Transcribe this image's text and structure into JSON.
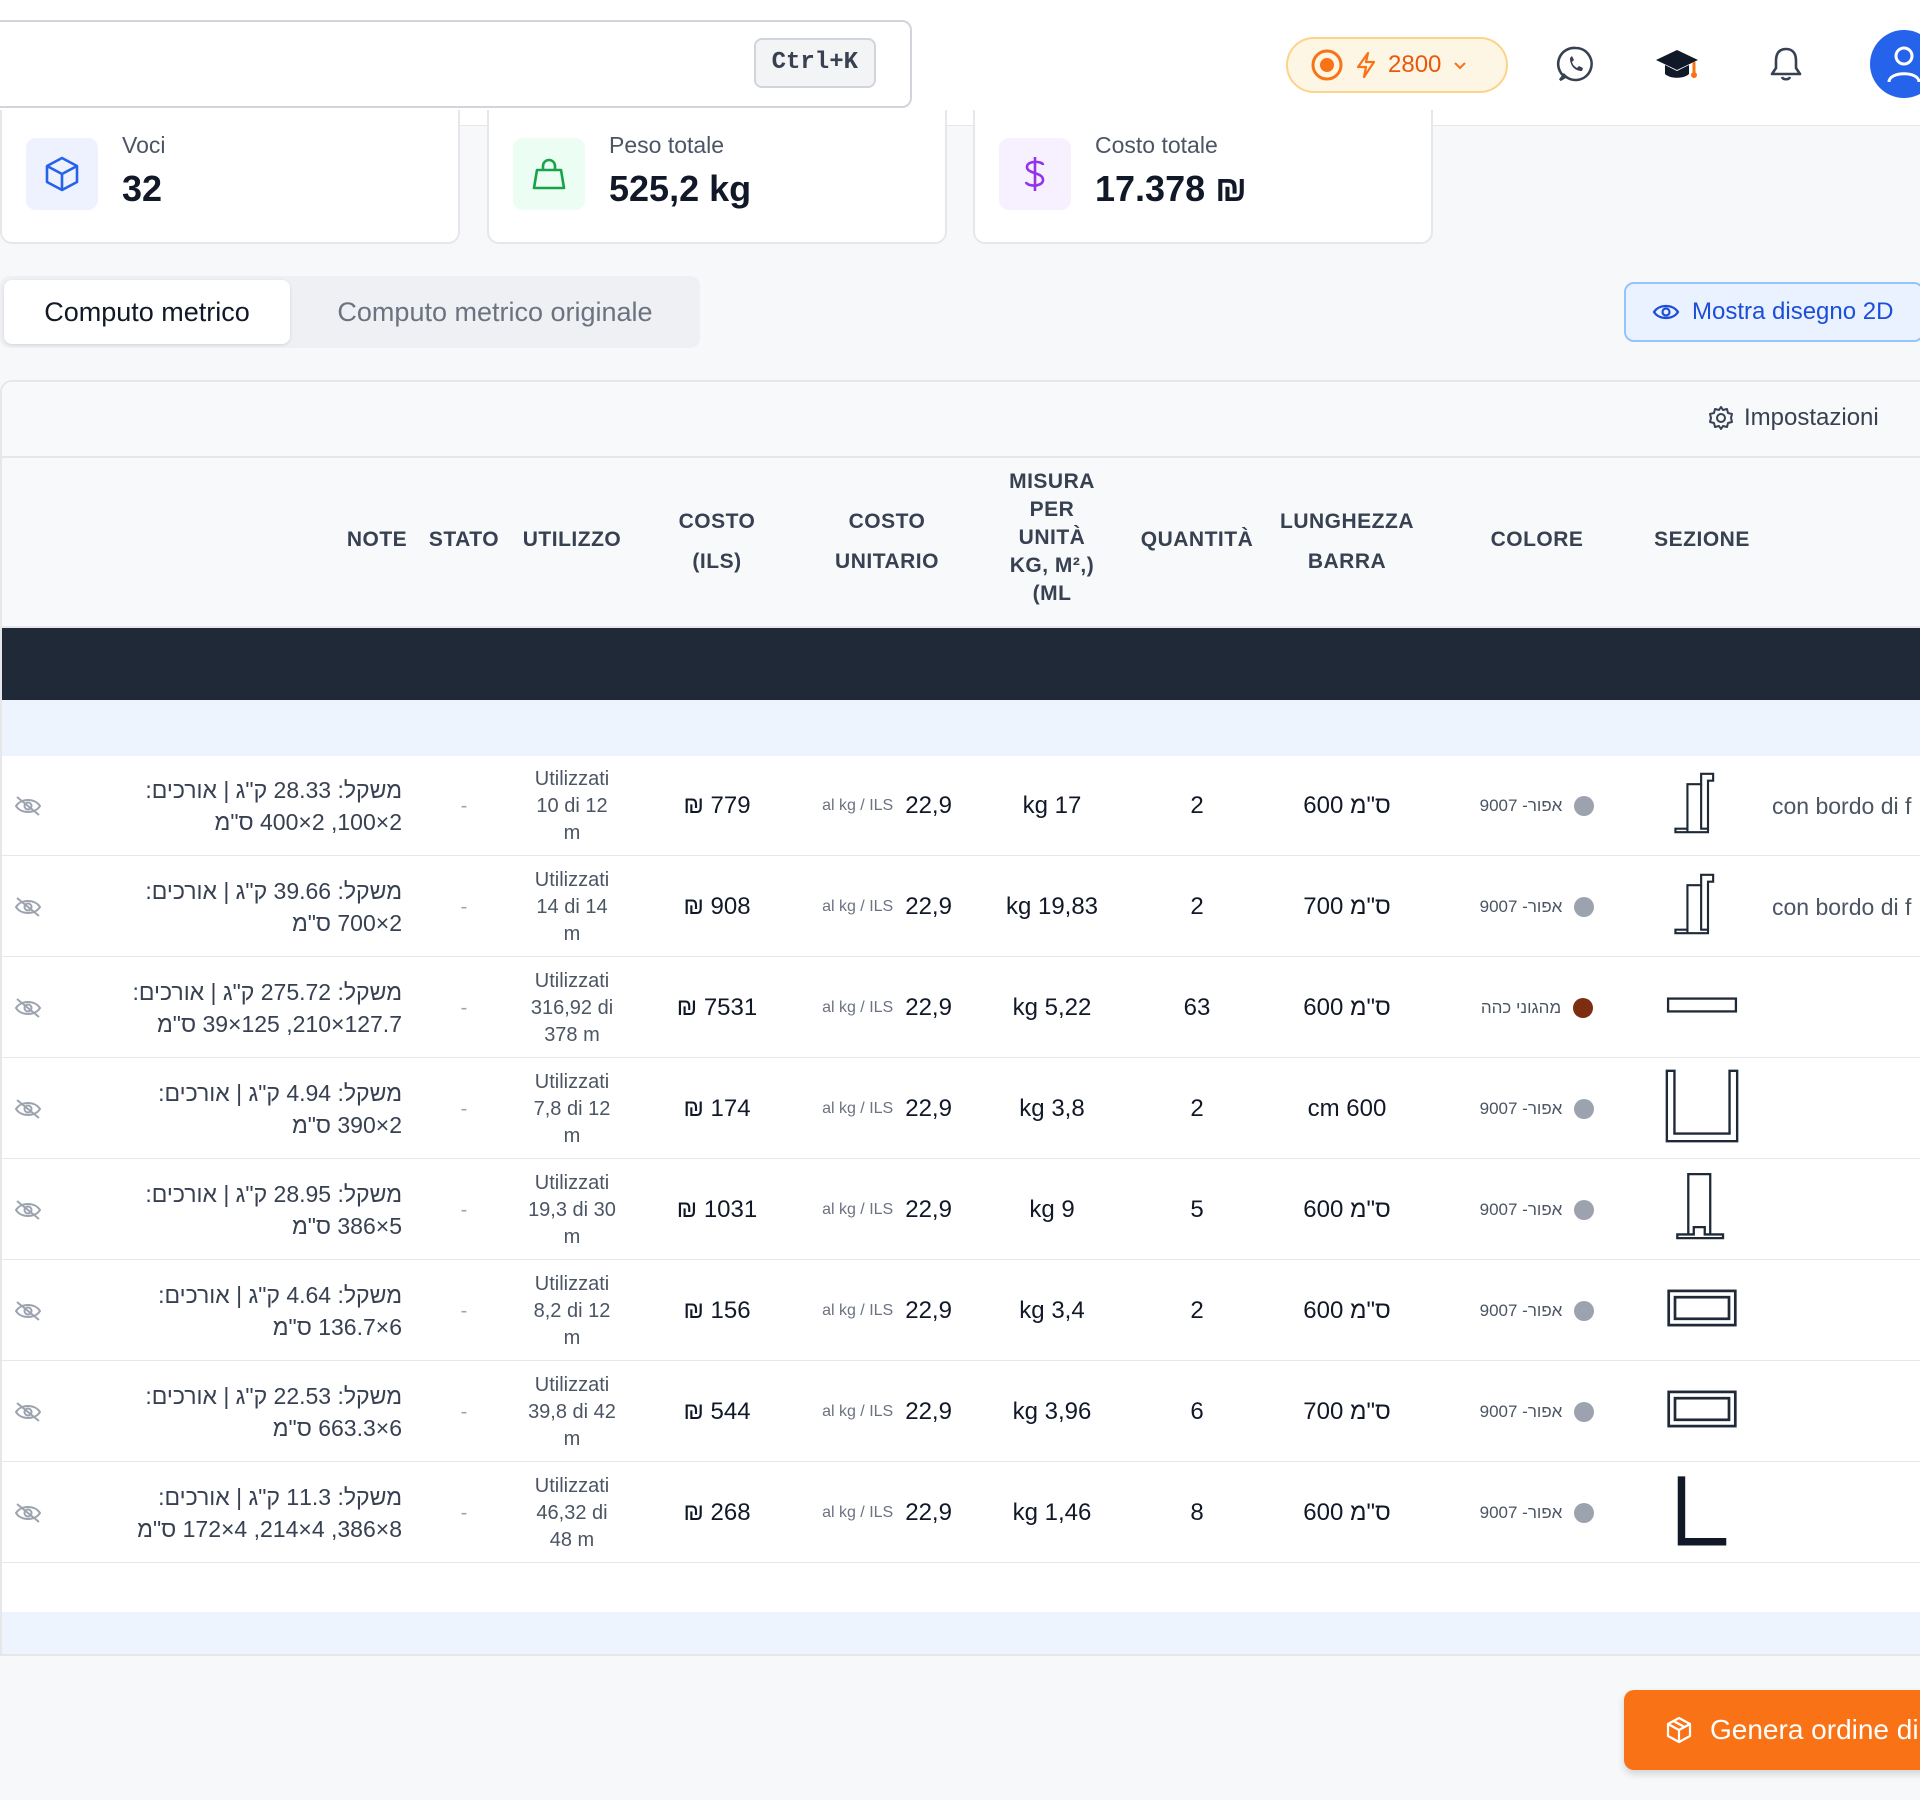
{
  "header": {
    "search_shortcut": "Ctrl+K",
    "credits": "2800"
  },
  "stats": [
    {
      "label": "Voci",
      "value": "32",
      "icon": "cube-icon",
      "color": "#2563eb"
    },
    {
      "label": "Peso totale",
      "value": "525,2 kg",
      "icon": "weight-icon",
      "color": "#16a34a"
    },
    {
      "label": "Costo totale",
      "value": "17.378 ₪",
      "icon": "dollar-icon",
      "color": "#9333ea"
    }
  ],
  "tabs": {
    "active": "Computo metrico",
    "inactive": "Computo metrico originale"
  },
  "show_2d_label": "Mostra disegno 2D",
  "settings_label": "Impostazioni",
  "columns": {
    "note": "NOTE",
    "stato": "STATO",
    "utilizzo": "UTILIZZO",
    "costo_1": "COSTO",
    "costo_2": "(ILS)",
    "unitario_1": "COSTO",
    "unitario_2": "UNITARIO",
    "misura_1": "MISURA",
    "misura_2": "PER",
    "misura_3": "UNITÀ",
    "misura_4": "KG, M²,)",
    "misura_5": "(ML",
    "quantita": "QUANTITÀ",
    "lunghezza_1": "LUNGHEZZA",
    "lunghezza_2": "BARRA",
    "colore": "COLORE",
    "sezione": "SEZIONE"
  },
  "rows": [
    {
      "note_1": "משקל: 28.33 ק\"ג | אורכים:",
      "note_2": "2×100, 2×400 ס\"מ",
      "stato": "-",
      "util_1": "Utilizzati",
      "util_2": "10 di 12",
      "util_3": "m",
      "costo": "₪ 779",
      "unit_small": "al kg / ILS",
      "unit_val": "22,9",
      "misura": "kg 17",
      "quantita": "2",
      "lunghezza": "600 ס\"מ",
      "colore": "אפור- 9007",
      "dot": "#9ca3af",
      "section": "omega",
      "desc": "con bordo di f"
    },
    {
      "note_1": "משקל: 39.66 ק\"ג | אורכים:",
      "note_2": "2×700 ס\"מ",
      "stato": "-",
      "util_1": "Utilizzati",
      "util_2": "14 di 14",
      "util_3": "m",
      "costo": "₪ 908",
      "unit_small": "al kg / ILS",
      "unit_val": "22,9",
      "misura": "kg 19,83",
      "quantita": "2",
      "lunghezza": "700 ס\"מ",
      "colore": "אפור- 9007",
      "dot": "#9ca3af",
      "section": "omega",
      "desc": "con bordo di f"
    },
    {
      "note_1": "משקל: 275.72 ק\"ג | אורכים:",
      "note_2": "127.7×210, 125×39 ס\"מ",
      "stato": "-",
      "util_1": "Utilizzati",
      "util_2": "316,92 di",
      "util_3": "378 m",
      "costo": "₪ 7531",
      "unit_small": "al kg / ILS",
      "unit_val": "22,9",
      "misura": "kg 5,22",
      "quantita": "63",
      "lunghezza": "600 ס\"מ",
      "colore": "מהגוני כהה",
      "dot": "#7c2d12",
      "section": "flat",
      "desc": ""
    },
    {
      "note_1": "משקל: 4.94 ק\"ג | אורכים:",
      "note_2": "2×390 ס\"מ",
      "stato": "-",
      "util_1": "Utilizzati",
      "util_2": "7,8 di 12",
      "util_3": "m",
      "costo": "₪ 174",
      "unit_small": "al kg / ILS",
      "unit_val": "22,9",
      "misura": "kg 3,8",
      "quantita": "2",
      "lunghezza": "cm 600",
      "colore": "אפור- 9007",
      "dot": "#9ca3af",
      "section": "u",
      "desc": ""
    },
    {
      "note_1": "משקל: 28.95 ק\"ג | אורכים:",
      "note_2": "5×386 ס\"מ",
      "stato": "-",
      "util_1": "Utilizzati",
      "util_2": "19,3 di 30",
      "util_3": "m",
      "costo": "₪ 1031",
      "unit_small": "al kg / ILS",
      "unit_val": "22,9",
      "misura": "kg 9",
      "quantita": "5",
      "lunghezza": "600 ס\"מ",
      "colore": "אפור- 9007",
      "dot": "#9ca3af",
      "section": "tall",
      "desc": ""
    },
    {
      "note_1": "משקל: 4.64 ק\"ג | אורכים:",
      "note_2": "6×136.7 ס\"מ",
      "stato": "-",
      "util_1": "Utilizzati",
      "util_2": "8,2 di 12",
      "util_3": "m",
      "costo": "₪ 156",
      "unit_small": "al kg / ILS",
      "unit_val": "22,9",
      "misura": "kg 3,4",
      "quantita": "2",
      "lunghezza": "600 ס\"מ",
      "colore": "אפור- 9007",
      "dot": "#9ca3af",
      "section": "rect",
      "desc": ""
    },
    {
      "note_1": "משקל: 22.53 ק\"ג | אורכים:",
      "note_2": "6×663.3 ס\"מ",
      "stato": "-",
      "util_1": "Utilizzati",
      "util_2": "39,8 di 42",
      "util_3": "m",
      "costo": "₪ 544",
      "unit_small": "al kg / ILS",
      "unit_val": "22,9",
      "misura": "kg 3,96",
      "quantita": "6",
      "lunghezza": "700 ס\"מ",
      "colore": "אפור- 9007",
      "dot": "#9ca3af",
      "section": "rect",
      "desc": ""
    },
    {
      "note_1": "משקל: 11.3 ק\"ג | אורכים:",
      "note_2": "8×386, 4×214, 4×172 ס\"מ",
      "stato": "-",
      "util_1": "Utilizzati",
      "util_2": "46,32 di",
      "util_3": "48 m",
      "costo": "₪ 268",
      "unit_small": "al kg / ILS",
      "unit_val": "22,9",
      "misura": "kg 1,46",
      "quantita": "8",
      "lunghezza": "600 ס\"מ",
      "colore": "אפור- 9007",
      "dot": "#9ca3af",
      "section": "angle",
      "desc": ""
    }
  ],
  "generate_label": "Genera ordine di"
}
